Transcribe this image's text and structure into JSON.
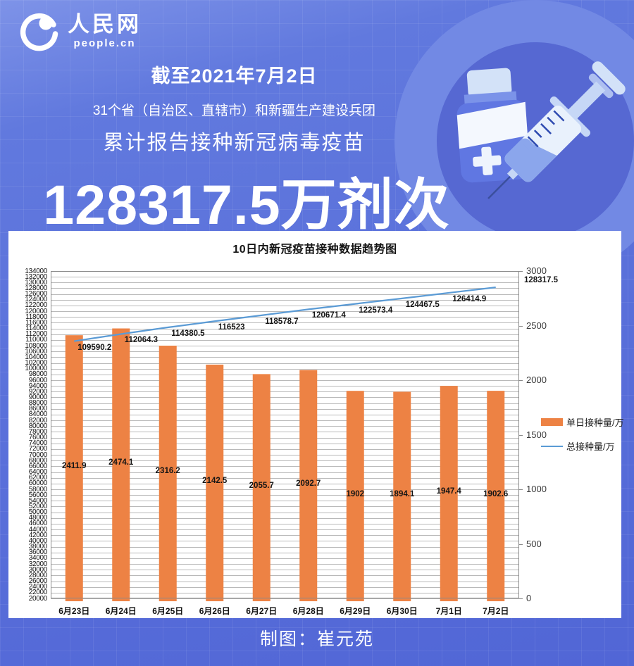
{
  "logo": {
    "brand": "人民网",
    "domain": "people.cn"
  },
  "banner": {
    "date_line": "截至2021年7月2日",
    "scope_line": "31个省（自治区、直辖市）和新疆生产建设兵团",
    "subject_line": "累计报告接种新冠病毒疫苗",
    "headline": "128317.5万剂次"
  },
  "footer": {
    "credit": "制图：崔元苑"
  },
  "colors": {
    "background_blue": "#5a70da",
    "card_white": "#ffffff",
    "bar_orange": "#ED8244",
    "line_blue": "#5B9BD5",
    "grid_gray": "#b9b9b9",
    "axis_gray": "#8a8a8a",
    "text_white": "#ffffff",
    "text_black": "#141414"
  },
  "icons": {
    "logo_mark": "swoosh-globe",
    "illustration": "vaccine-vial-and-syringe"
  },
  "chart_data": {
    "type": "bar",
    "subtype": "combo-bar-line-dual-axis",
    "title": "10日内新冠疫苗接种数据趋势图",
    "categories": [
      "6月23日",
      "6月24日",
      "6月25日",
      "6月26日",
      "6月27日",
      "6月28日",
      "6月29日",
      "6月30日",
      "7月1日",
      "7月2日"
    ],
    "series": [
      {
        "name": "单日接种量/万",
        "type": "bar",
        "axis": "right",
        "color": "#ED8244",
        "values": [
          2411.9,
          2474.1,
          2316.2,
          2142.5,
          2055.7,
          2092.7,
          1902,
          1894.1,
          1947.4,
          1902.6
        ]
      },
      {
        "name": "总接种量/万",
        "type": "line",
        "axis": "left",
        "color": "#5B9BD5",
        "values": [
          109590.2,
          112064.3,
          114380.5,
          116523,
          118578.7,
          120671.4,
          122573.4,
          124467.5,
          126414.9,
          128317.5
        ]
      }
    ],
    "y_left": {
      "min": 20000,
      "max": 134000,
      "step": 2000,
      "ticks": [
        134000,
        132000,
        130000,
        128000,
        126000,
        124000,
        122000,
        120000,
        118000,
        116000,
        114000,
        112000,
        110000,
        108000,
        106000,
        104000,
        102000,
        100000,
        98000,
        96000,
        94000,
        92000,
        90000,
        88000,
        86000,
        84000,
        82000,
        80000,
        78000,
        76000,
        74000,
        72000,
        70000,
        68000,
        66000,
        64000,
        62000,
        60000,
        58000,
        56000,
        54000,
        52000,
        50000,
        48000,
        46000,
        44000,
        42000,
        40000,
        38000,
        36000,
        34000,
        32000,
        30000,
        28000,
        26000,
        24000,
        22000,
        20000
      ]
    },
    "y_right": {
      "min": 0,
      "max": 3000,
      "step": 500,
      "ticks": [
        3000,
        2500,
        2000,
        1500,
        1000,
        500,
        0
      ]
    },
    "grid": true,
    "legend_position": "right"
  }
}
